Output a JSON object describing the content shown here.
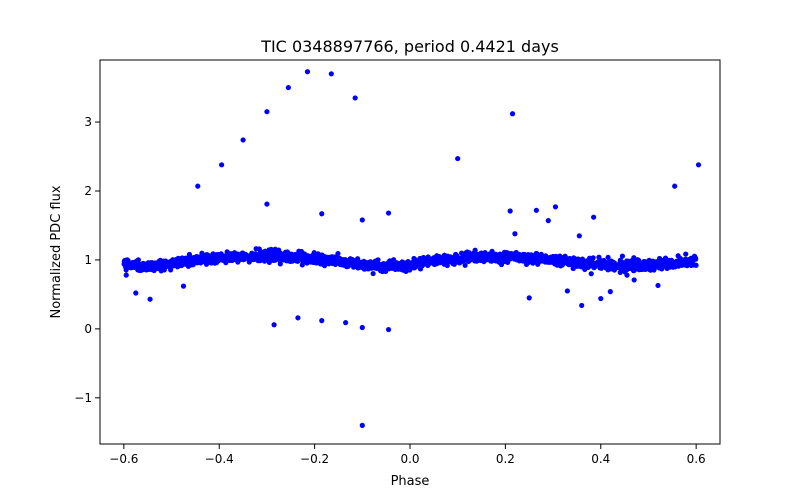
{
  "chart_data": {
    "type": "scatter",
    "title": "TIC 0348897766, period 0.4421 days",
    "xlabel": "Phase",
    "ylabel": "Normalized PDC flux",
    "xlim": [
      -0.65,
      0.65
    ],
    "ylim": [
      -1.67,
      3.9
    ],
    "xticks": [
      -0.6,
      -0.4,
      -0.2,
      0.0,
      0.2,
      0.4,
      0.6
    ],
    "yticks": [
      -1,
      0,
      1,
      2,
      3
    ],
    "grid": false,
    "marker_color": "#0000ff",
    "baseline": {
      "x_range": [
        -0.6,
        0.6
      ],
      "n_points": 2200,
      "mean": 1.0,
      "amplitude": 0.07,
      "period_in_phase": 0.4421,
      "scatter_sd": 0.035,
      "shape_points": [
        {
          "x": -0.6,
          "y": 0.95
        },
        {
          "x": -0.55,
          "y": 0.9
        },
        {
          "x": -0.5,
          "y": 0.94
        },
        {
          "x": -0.45,
          "y": 1.0
        },
        {
          "x": -0.4,
          "y": 1.03
        },
        {
          "x": -0.3,
          "y": 1.06
        },
        {
          "x": -0.2,
          "y": 1.02
        },
        {
          "x": -0.1,
          "y": 0.93
        },
        {
          "x": -0.05,
          "y": 0.9
        },
        {
          "x": 0.0,
          "y": 0.92
        },
        {
          "x": 0.05,
          "y": 1.0
        },
        {
          "x": 0.15,
          "y": 1.04
        },
        {
          "x": 0.25,
          "y": 1.03
        },
        {
          "x": 0.35,
          "y": 0.96
        },
        {
          "x": 0.45,
          "y": 0.91
        },
        {
          "x": 0.52,
          "y": 0.92
        },
        {
          "x": 0.6,
          "y": 1.0
        }
      ]
    },
    "outliers": [
      {
        "x": -0.215,
        "y": 3.73
      },
      {
        "x": -0.165,
        "y": 3.7
      },
      {
        "x": -0.255,
        "y": 3.5
      },
      {
        "x": -0.115,
        "y": 3.35
      },
      {
        "x": -0.3,
        "y": 3.15
      },
      {
        "x": -0.35,
        "y": 2.74
      },
      {
        "x": -0.395,
        "y": 2.38
      },
      {
        "x": -0.445,
        "y": 2.07
      },
      {
        "x": 0.1,
        "y": 2.47
      },
      {
        "x": 0.215,
        "y": 3.12
      },
      {
        "x": 0.605,
        "y": 2.38
      },
      {
        "x": 0.555,
        "y": 2.07
      },
      {
        "x": -0.3,
        "y": 1.81
      },
      {
        "x": -0.185,
        "y": 1.67
      },
      {
        "x": -0.1,
        "y": 1.58
      },
      {
        "x": -0.045,
        "y": 1.68
      },
      {
        "x": 0.21,
        "y": 1.71
      },
      {
        "x": 0.265,
        "y": 1.72
      },
      {
        "x": 0.305,
        "y": 1.77
      },
      {
        "x": 0.29,
        "y": 1.57
      },
      {
        "x": 0.385,
        "y": 1.62
      },
      {
        "x": 0.355,
        "y": 1.35
      },
      {
        "x": 0.22,
        "y": 1.38
      },
      {
        "x": -0.285,
        "y": 0.06
      },
      {
        "x": -0.235,
        "y": 0.16
      },
      {
        "x": -0.185,
        "y": 0.12
      },
      {
        "x": -0.135,
        "y": 0.09
      },
      {
        "x": -0.1,
        "y": 0.02
      },
      {
        "x": -0.045,
        "y": -0.01
      },
      {
        "x": -0.1,
        "y": -1.4
      },
      {
        "x": -0.575,
        "y": 0.52
      },
      {
        "x": -0.545,
        "y": 0.43
      },
      {
        "x": -0.595,
        "y": 0.78
      },
      {
        "x": 0.25,
        "y": 0.45
      },
      {
        "x": 0.33,
        "y": 0.55
      },
      {
        "x": 0.36,
        "y": 0.34
      },
      {
        "x": 0.4,
        "y": 0.44
      },
      {
        "x": 0.42,
        "y": 0.54
      },
      {
        "x": 0.47,
        "y": 0.71
      },
      {
        "x": 0.52,
        "y": 0.63
      },
      {
        "x": -0.475,
        "y": 0.62
      },
      {
        "x": 0.38,
        "y": 0.8
      },
      {
        "x": 0.455,
        "y": 0.78
      }
    ]
  }
}
